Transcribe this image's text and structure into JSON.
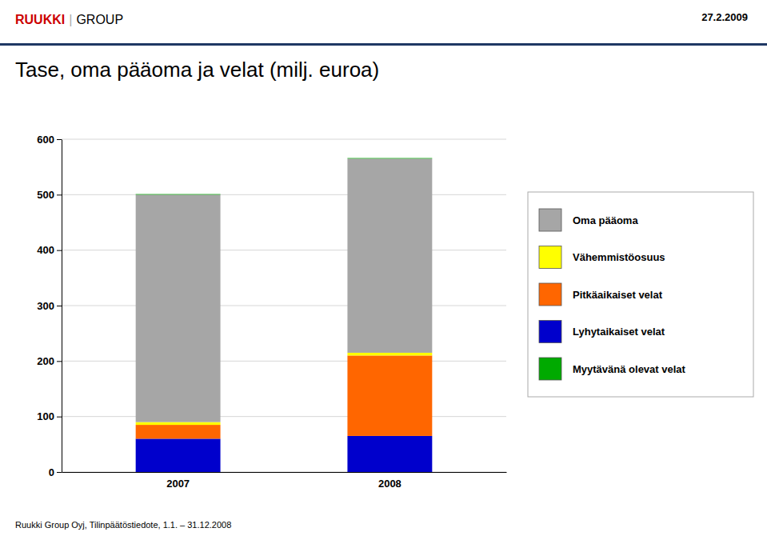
{
  "chart_data": {
    "type": "bar",
    "stacked": true,
    "title": "Tase, oma pääoma ja velat (milj. euroa)",
    "annotations": [
      {
        "text": "27.2.2009"
      },
      {
        "text": "Ruukki Group Oyj, Tilinpäätöstiedote, 1.1. – 31.12.2008"
      },
      {
        "text": "RUUKKI",
        "color": "#cc0000"
      },
      {
        "text": "|"
      },
      {
        "text": "GROUP"
      }
    ],
    "categories": [
      "2007",
      "2008"
    ],
    "series": [
      {
        "name": "Oma pääoma",
        "color": "#a6a6a6",
        "values": [
          410,
          350
        ]
      },
      {
        "name": "Vähemmistöosuus",
        "color": "#ffff00",
        "values": [
          5,
          5
        ]
      },
      {
        "name": "Pitkäaikaiset velat",
        "color": "#ff6600",
        "values": [
          25,
          145
        ]
      },
      {
        "name": "Lyhytaikaiset velat",
        "color": "#0000cc",
        "values": [
          60,
          65
        ]
      },
      {
        "name": "Myytävänä olevat velat",
        "color": "#00aa00",
        "values": [
          1,
          1
        ]
      }
    ],
    "ylim": [
      0,
      600
    ],
    "yticks": [
      0,
      100,
      200,
      300,
      400,
      500,
      600
    ],
    "grid": true,
    "legend": "right"
  }
}
